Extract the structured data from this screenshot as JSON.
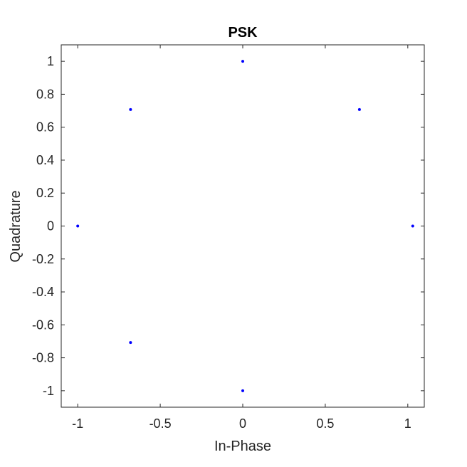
{
  "chart_data": {
    "type": "scatter",
    "title": "PSK",
    "xlabel": "In-Phase",
    "ylabel": "Quadrature",
    "xlim": [
      -1.1,
      1.1
    ],
    "ylim": [
      -1.1,
      1.1
    ],
    "xticks": [
      -1,
      -0.5,
      0,
      0.5,
      1
    ],
    "xtick_labels": [
      "-1",
      "-0.5",
      "0",
      "0.5",
      "1"
    ],
    "yticks": [
      1,
      0.8,
      0.6,
      0.4,
      0.2,
      0,
      -0.2,
      -0.4,
      -0.6,
      -0.8,
      -1
    ],
    "ytick_labels": [
      "1",
      "0.8",
      "0.6",
      "0.4",
      "0.2",
      "0",
      "-0.2",
      "-0.4",
      "-0.6",
      "-0.8",
      "-1"
    ],
    "grid": false,
    "marker_color": "#0000ff",
    "axes_color": "#262626",
    "series": [
      {
        "points": [
          {
            "x": 0,
            "y": 1
          },
          {
            "x": 0.707,
            "y": 0.707
          },
          {
            "x": 1.03,
            "y": 0
          },
          {
            "x": 0,
            "y": -1
          },
          {
            "x": -0.68,
            "y": -0.707
          },
          {
            "x": -1,
            "y": 0
          },
          {
            "x": -0.68,
            "y": 0.707
          }
        ]
      }
    ]
  }
}
